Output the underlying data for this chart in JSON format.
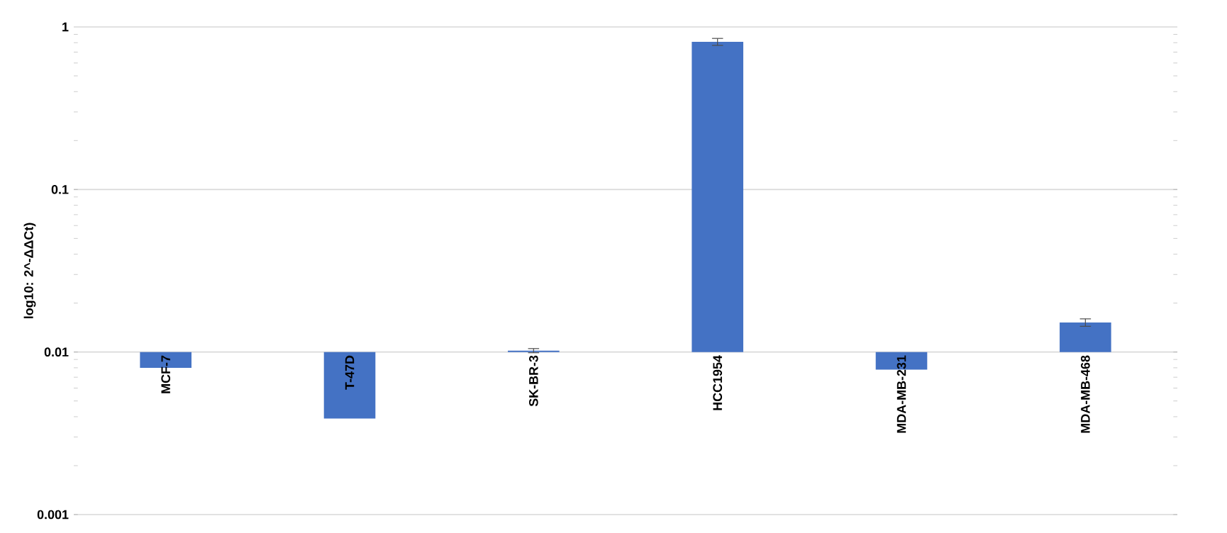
{
  "chart_data": {
    "type": "bar",
    "ylabel": "log10: 2^-ΔΔCt)",
    "categories": [
      "MCF-7",
      "T-47D",
      "SK-BR-3",
      "HCC1954",
      "MDA-MB-231",
      "MDA-MB-468"
    ],
    "base": [
      0.01,
      0.01,
      0.01,
      0.01,
      0.01,
      0.01
    ],
    "values": [
      -0.002,
      -0.0061,
      0.0002,
      0.8,
      -0.0022,
      0.0052
    ],
    "errors": [
      null,
      null,
      0.0003,
      0.04,
      null,
      0.0008
    ],
    "color": "#4472c4",
    "log": true,
    "ylim": [
      0.001,
      1
    ],
    "yticks": [
      0.001,
      0.01,
      0.1,
      1
    ],
    "grid": "y"
  }
}
